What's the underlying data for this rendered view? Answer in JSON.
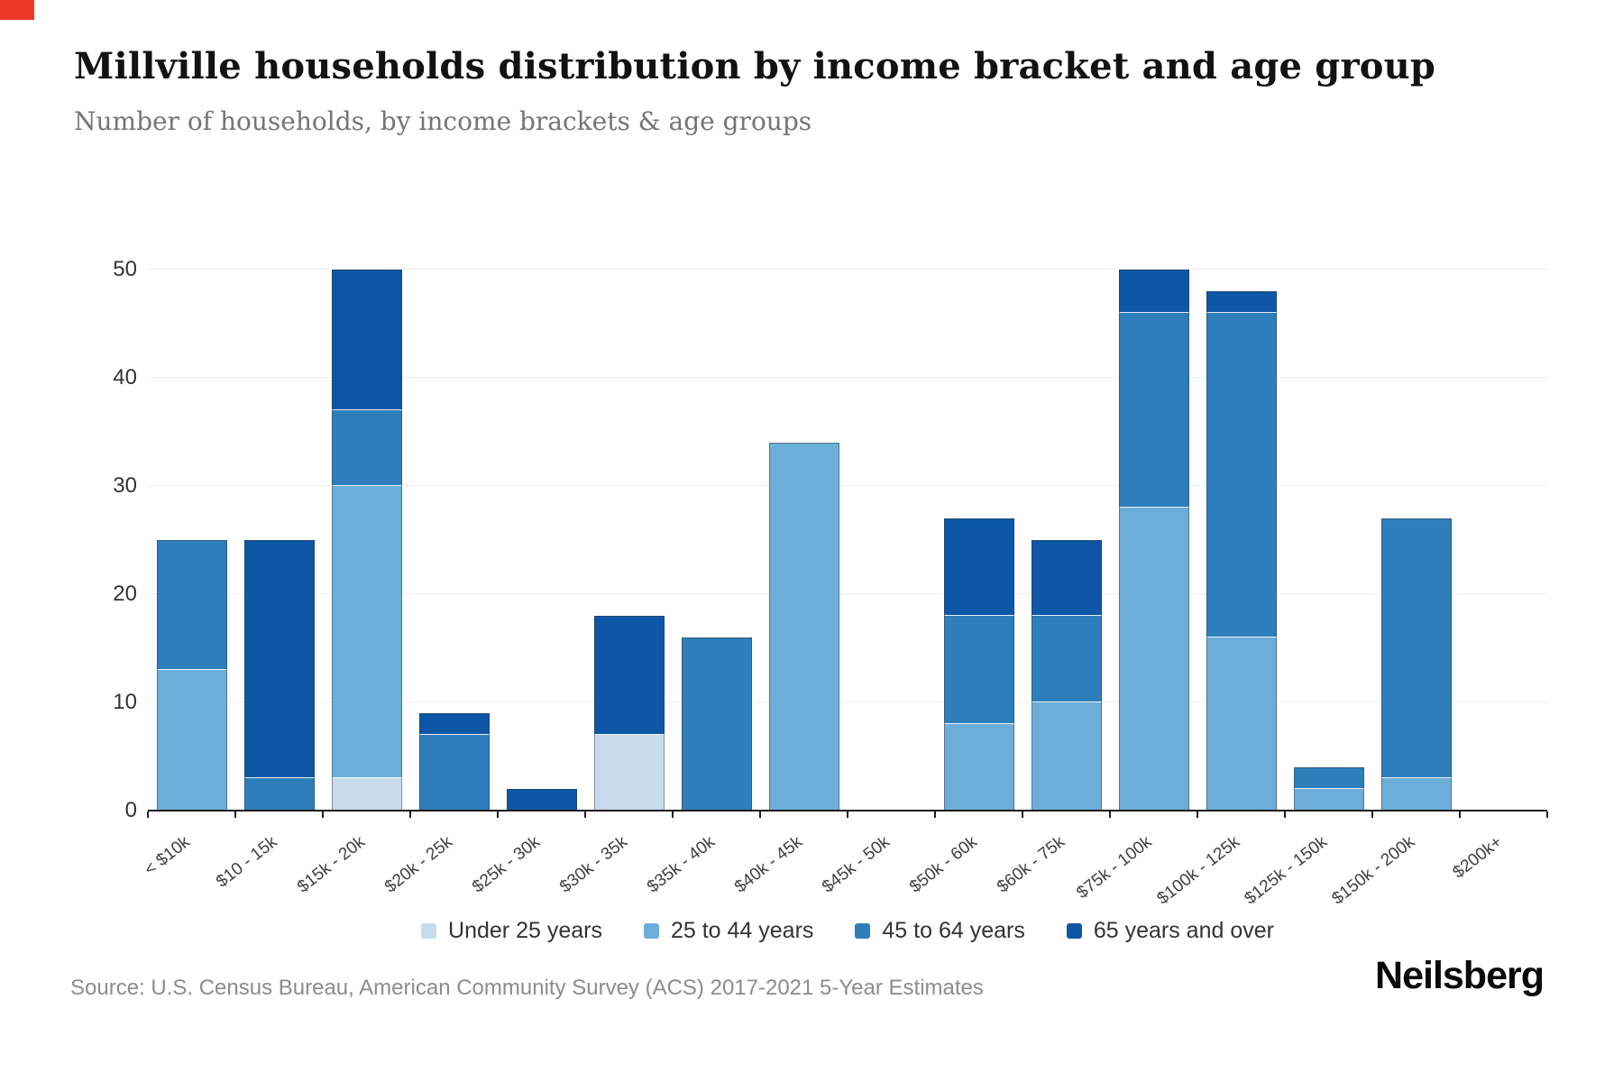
{
  "page": {
    "title": "Millville households distribution by income bracket and age group",
    "subtitle": "Number of households, by income brackets & age groups",
    "source": "Source: U.S. Census Bureau, American Community Survey (ACS) 2017-2021 5-Year Estimates",
    "logo": "Neilsberg",
    "accent_color": "#ee3726"
  },
  "chart_data": {
    "type": "bar",
    "stacked": true,
    "title": "Millville households distribution by income bracket and age group",
    "subtitle": "Number of households, by income brackets & age groups",
    "xlabel": "",
    "ylabel": "Number of households",
    "ylim": [
      0,
      50
    ],
    "yticks": [
      0,
      10,
      20,
      30,
      40,
      50
    ],
    "grid": "horizontal",
    "legend_position": "bottom",
    "categories": [
      "< $10k",
      "$10 - 15k",
      "$15k - 20k",
      "$20k - 25k",
      "$25k - 30k",
      "$30k - 35k",
      "$35k - 40k",
      "$40k - 45k",
      "$45k - 50k",
      "$50k - 60k",
      "$60k - 75k",
      "$75k - 100k",
      "$100k - 125k",
      "$125k - 150k",
      "$150k - 200k",
      "$200k+"
    ],
    "series": [
      {
        "name": "Under 25 years",
        "color": "#c7dbec",
        "values": [
          0,
          0,
          3,
          0,
          0,
          7,
          0,
          0,
          0,
          0,
          0,
          0,
          0,
          0,
          0,
          0
        ]
      },
      {
        "name": "25 to 44 years",
        "color": "#6caed9",
        "values": [
          13,
          0,
          27,
          0,
          0,
          0,
          0,
          34,
          0,
          8,
          10,
          28,
          16,
          2,
          3,
          0
        ]
      },
      {
        "name": "45 to 64 years",
        "color": "#2e7ebc",
        "values": [
          12,
          3,
          7,
          7,
          0,
          0,
          16,
          0,
          0,
          10,
          8,
          18,
          30,
          2,
          24,
          0
        ]
      },
      {
        "name": "65 years and over",
        "color": "#0d57a6",
        "values": [
          0,
          22,
          13,
          2,
          2,
          11,
          0,
          0,
          0,
          9,
          7,
          4,
          2,
          0,
          0,
          0
        ]
      }
    ],
    "totals": [
      25,
      25,
      50,
      9,
      2,
      18,
      16,
      34,
      0,
      27,
      25,
      50,
      48,
      4,
      27,
      0
    ]
  }
}
